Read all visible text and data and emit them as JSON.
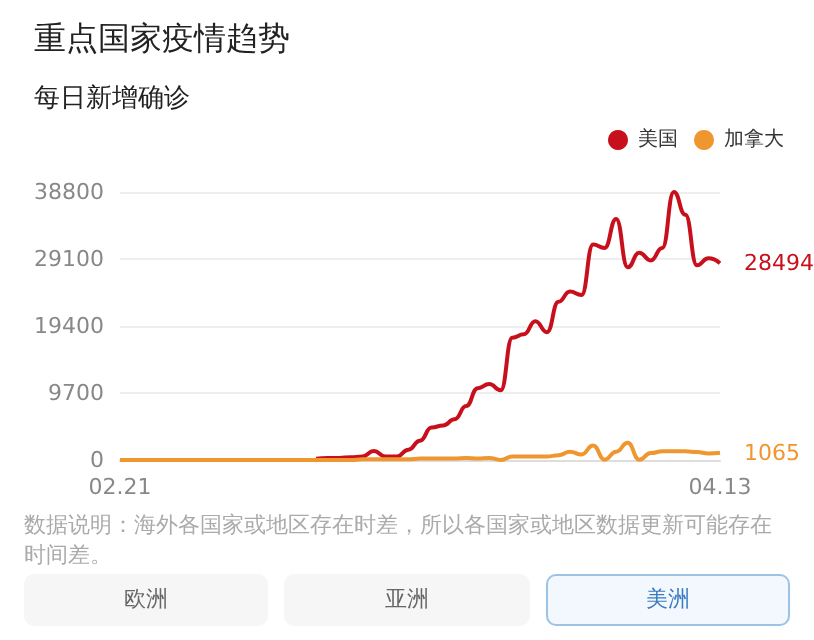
{
  "chart_data": {
    "type": "line",
    "title": "重点国家疫情趋势",
    "subtitle": "每日新增确诊",
    "categories": [
      "02.21",
      null,
      null,
      null,
      null,
      null,
      null,
      null,
      null,
      null,
      null,
      null,
      null,
      null,
      null,
      null,
      null,
      null,
      null,
      null,
      null,
      null,
      null,
      null,
      null,
      null,
      null,
      null,
      null,
      null,
      null,
      null,
      null,
      null,
      null,
      null,
      null,
      null,
      null,
      null,
      null,
      null,
      null,
      null,
      null,
      null,
      null,
      null,
      null,
      null,
      null,
      null,
      "04.13"
    ],
    "series": [
      {
        "name": "美国",
        "color": "#c8101c",
        "values": [
          null,
          null,
          null,
          null,
          null,
          null,
          null,
          null,
          null,
          null,
          null,
          null,
          null,
          null,
          null,
          null,
          null,
          200,
          300,
          300,
          400,
          500,
          1300,
          500,
          500,
          1500,
          2800,
          4700,
          5000,
          5900,
          7800,
          10400,
          11000,
          10100,
          17700,
          18200,
          20100,
          18500,
          22900,
          24400,
          23900,
          31200,
          30700,
          34900,
          27900,
          30000,
          28900,
          30700,
          38800,
          35500,
          28200,
          29200,
          28494
        ],
        "value_labels": [
          null,
          null,
          null,
          null,
          null,
          null,
          null,
          null,
          null,
          null,
          null,
          null,
          null,
          null,
          null,
          null,
          null,
          null,
          null,
          null,
          null,
          null,
          null,
          null,
          null,
          null,
          null,
          null,
          null,
          null,
          null,
          null,
          null,
          null,
          null,
          null,
          null,
          null,
          null,
          null,
          null,
          null,
          null,
          null,
          null,
          null,
          null,
          null,
          null,
          null,
          null,
          null,
          "28494"
        ]
      },
      {
        "name": "加拿大",
        "color": "#f0962e",
        "values": [
          0,
          0,
          0,
          0,
          0,
          0,
          0,
          0,
          0,
          0,
          0,
          0,
          0,
          0,
          0,
          0,
          0,
          0,
          0,
          0,
          0,
          100,
          100,
          100,
          100,
          100,
          200,
          200,
          200,
          200,
          300,
          200,
          300,
          0,
          500,
          500,
          500,
          500,
          700,
          1200,
          800,
          2100,
          50,
          1200,
          2500,
          50,
          1000,
          1250,
          1250,
          1250,
          1150,
          950,
          1065
        ],
        "value_labels": [
          null,
          null,
          null,
          null,
          null,
          null,
          null,
          null,
          null,
          null,
          null,
          null,
          null,
          null,
          null,
          null,
          null,
          null,
          null,
          null,
          null,
          null,
          null,
          null,
          null,
          null,
          null,
          null,
          null,
          null,
          null,
          null,
          null,
          null,
          null,
          null,
          null,
          null,
          null,
          null,
          null,
          null,
          null,
          null,
          null,
          null,
          null,
          null,
          null,
          null,
          null,
          null,
          "1065"
        ]
      }
    ],
    "ylim": [
      0,
      38800
    ],
    "yticks": [
      0,
      {
        "value": 9700,
        "label": "9700"
      },
      {
        "value": 19400,
        "label": "19400"
      },
      {
        "value": 29100,
        "label": "29100"
      },
      {
        "value": 38800,
        "label": "38800"
      }
    ],
    "grid": "y",
    "legend": "top right",
    "marker": "none",
    "line_style": "solid",
    "annotations": [
      "数据说明：海外各国家或地区存在时差，所以各国家或地区数据更新可能存在时间差。",
      "欧洲",
      "亚洲",
      "美洲"
    ]
  }
}
